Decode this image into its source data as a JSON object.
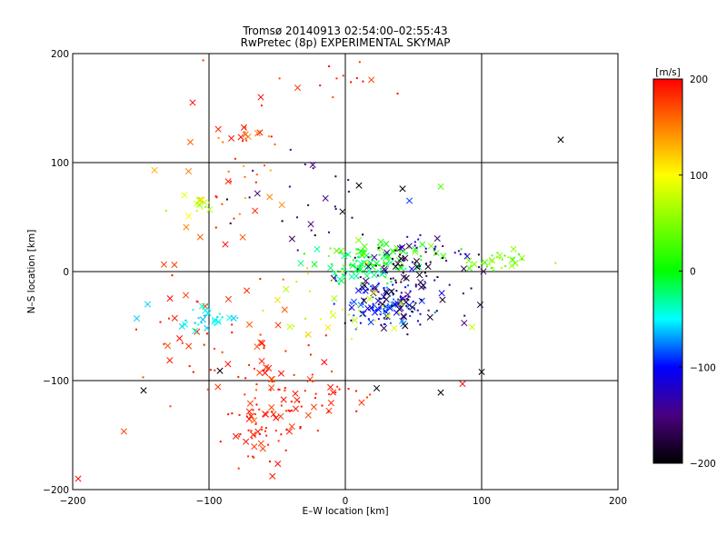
{
  "chart_data": {
    "type": "scatter",
    "title": "Tromsø 20140913 02:54:00–02:55:43",
    "subtitle": "RwPretec (8p) EXPERIMENTAL SKYMAP",
    "xlabel": "E–W location [km]",
    "ylabel": "N–S location [km]",
    "xlim": [
      -200,
      200
    ],
    "ylim": [
      -200,
      200
    ],
    "x_ticks": [
      "−200",
      "−100",
      "0",
      "100",
      "200"
    ],
    "y_ticks": [
      "−200",
      "−100",
      "0",
      "100",
      "200"
    ],
    "grid": true,
    "colorbar": {
      "label": "[m/s]",
      "range": [
        -200,
        200
      ],
      "ticks": [
        "200",
        "100",
        "0",
        "−100",
        "−200"
      ],
      "stops": [
        {
          "value": -200,
          "color": "#000000"
        },
        {
          "value": -150,
          "color": "#4a0080"
        },
        {
          "value": -100,
          "color": "#0000ff"
        },
        {
          "value": -50,
          "color": "#00ffff"
        },
        {
          "value": 0,
          "color": "#00ff00"
        },
        {
          "value": 100,
          "color": "#ffff00"
        },
        {
          "value": 200,
          "color": "#ff0000"
        }
      ]
    },
    "clusters": [
      {
        "cx": -35,
        "cy": -120,
        "sx": 22,
        "sy": 22,
        "n": 70,
        "vmin": 175,
        "vmax": 200
      },
      {
        "cx": -60,
        "cy": -145,
        "sx": 15,
        "sy": 15,
        "n": 40,
        "vmin": 175,
        "vmax": 200
      },
      {
        "cx": -80,
        "cy": -80,
        "sx": 25,
        "sy": 35,
        "n": 40,
        "vmin": 160,
        "vmax": 200
      },
      {
        "cx": -130,
        "cy": -50,
        "sx": 30,
        "sy": 30,
        "n": 25,
        "vmin": 170,
        "vmax": 200
      },
      {
        "cx": -70,
        "cy": 125,
        "sx": 10,
        "sy": 4,
        "n": 18,
        "vmin": 140,
        "vmax": 200
      },
      {
        "cx": -75,
        "cy": 65,
        "sx": 25,
        "sy": 25,
        "n": 25,
        "vmin": 130,
        "vmax": 200
      },
      {
        "cx": -100,
        "cy": -42,
        "sx": 12,
        "sy": 5,
        "n": 30,
        "vmin": -65,
        "vmax": -35
      },
      {
        "cx": -110,
        "cy": 60,
        "sx": 8,
        "sy": 5,
        "n": 12,
        "vmin": 40,
        "vmax": 100
      },
      {
        "cx": 15,
        "cy": 5,
        "sx": 15,
        "sy": 8,
        "n": 90,
        "vmin": -40,
        "vmax": 10
      },
      {
        "cx": 30,
        "cy": 20,
        "sx": 25,
        "sy": 5,
        "n": 40,
        "vmin": 0,
        "vmax": 50
      },
      {
        "cx": 30,
        "cy": -30,
        "sx": 15,
        "sy": 12,
        "n": 110,
        "vmin": -120,
        "vmax": -70
      },
      {
        "cx": 40,
        "cy": -15,
        "sx": 25,
        "sy": 25,
        "n": 110,
        "vmin": -200,
        "vmax": -150
      },
      {
        "cx": 110,
        "cy": 10,
        "sx": 12,
        "sy": 6,
        "n": 35,
        "vmin": 20,
        "vmax": 80
      },
      {
        "cx": 60,
        "cy": 20,
        "sx": 20,
        "sy": 8,
        "n": 25,
        "vmin": -160,
        "vmax": -110
      },
      {
        "cx": 0,
        "cy": -35,
        "sx": 25,
        "sy": 25,
        "n": 40,
        "vmin": 60,
        "vmax": 120
      },
      {
        "cx": -20,
        "cy": 60,
        "sx": 25,
        "sy": 20,
        "n": 25,
        "vmin": -200,
        "vmax": -130
      },
      {
        "cx": -30,
        "cy": 180,
        "sx": 40,
        "sy": 15,
        "n": 15,
        "vmin": 170,
        "vmax": 200
      }
    ],
    "highlight_points": [
      {
        "x": 158,
        "y": 121,
        "v": -200
      },
      {
        "x": -92,
        "y": -91,
        "v": -200
      },
      {
        "x": 100,
        "y": -92,
        "v": -200
      },
      {
        "x": -148,
        "y": -109,
        "v": -200
      },
      {
        "x": 70,
        "y": -111,
        "v": -200
      },
      {
        "x": 23,
        "y": -107,
        "v": -200
      },
      {
        "x": 42,
        "y": 76,
        "v": -200
      },
      {
        "x": 10,
        "y": 79,
        "v": -200
      },
      {
        "x": -2,
        "y": 55,
        "v": -200
      },
      {
        "x": -140,
        "y": 93,
        "v": 130
      },
      {
        "x": -115,
        "y": 92,
        "v": 150
      },
      {
        "x": -88,
        "y": 25,
        "v": 200
      },
      {
        "x": -153,
        "y": -43,
        "v": -60
      },
      {
        "x": -145,
        "y": -30,
        "v": -60
      },
      {
        "x": 86,
        "y": -103,
        "v": 200
      },
      {
        "x": -196,
        "y": -190,
        "v": 200
      },
      {
        "x": 93,
        "y": -51,
        "v": 80
      },
      {
        "x": 70,
        "y": 78,
        "v": 30
      },
      {
        "x": 47,
        "y": 65,
        "v": -90
      },
      {
        "x": -118,
        "y": 70,
        "v": 90
      },
      {
        "x": -62,
        "y": 160,
        "v": 200
      },
      {
        "x": -112,
        "y": 155,
        "v": 200
      }
    ]
  }
}
